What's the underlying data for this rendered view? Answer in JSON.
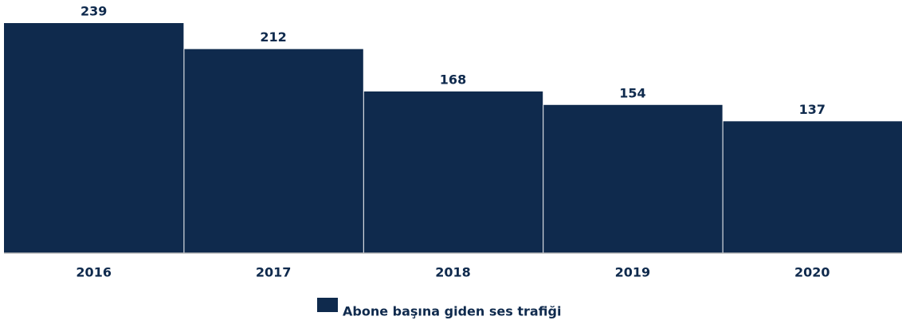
{
  "chart_data": {
    "type": "bar",
    "categories": [
      "2016",
      "2017",
      "2018",
      "2019",
      "2020"
    ],
    "series": [
      {
        "name": "Abone başına giden ses trafiği",
        "color": "#0f2a4d",
        "values": [
          239,
          212,
          168,
          154,
          137
        ]
      }
    ]
  }
}
